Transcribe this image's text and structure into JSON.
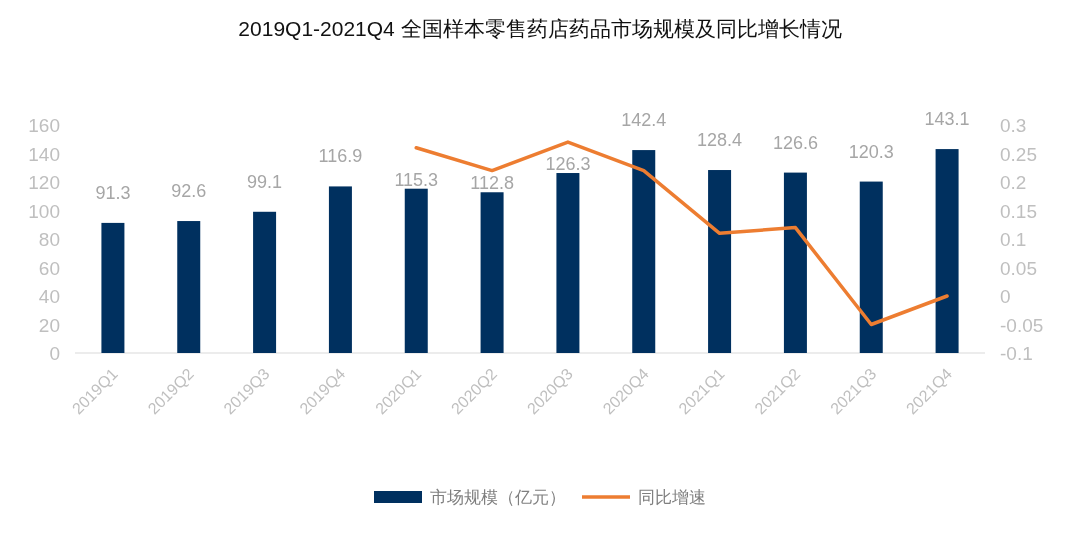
{
  "chart_data": {
    "type": "bar",
    "title": "2019Q1-2021Q4 全国样本零售药店药品市场规模及同比增长情况",
    "categories": [
      "2019Q1",
      "2019Q2",
      "2019Q3",
      "2019Q4",
      "2020Q1",
      "2020Q2",
      "2020Q3",
      "2020Q4",
      "2021Q1",
      "2021Q2",
      "2021Q3",
      "2021Q4"
    ],
    "series": [
      {
        "name": "市场规模（亿元）",
        "color": "#00305f",
        "values": [
          91.3,
          92.6,
          99.1,
          116.9,
          115.3,
          112.8,
          126.3,
          142.4,
          128.4,
          126.6,
          120.3,
          143.1
        ],
        "value_labels": [
          "91.3",
          "92.6",
          "99.1",
          "116.9",
          "115.3",
          "112.8",
          "126.3",
          "142.4",
          "128.4",
          "126.6",
          "120.3",
          "143.1"
        ]
      },
      {
        "name": "同比增速",
        "type": "line",
        "axis": "y2",
        "color": "#ed7d31",
        "values": [
          null,
          null,
          null,
          null,
          0.26,
          0.22,
          0.27,
          0.22,
          0.11,
          0.12,
          -0.05,
          0
        ]
      }
    ],
    "ylim": [
      0,
      160
    ],
    "yticks": [
      0,
      20,
      40,
      60,
      80,
      100,
      120,
      140,
      160
    ],
    "y2lim": [
      -0.1,
      0.3
    ],
    "y2ticks": [
      -0.1,
      -0.05,
      0,
      0.05,
      0.1,
      0.15,
      0.2,
      0.25,
      0.3
    ],
    "legend": "bottom"
  }
}
